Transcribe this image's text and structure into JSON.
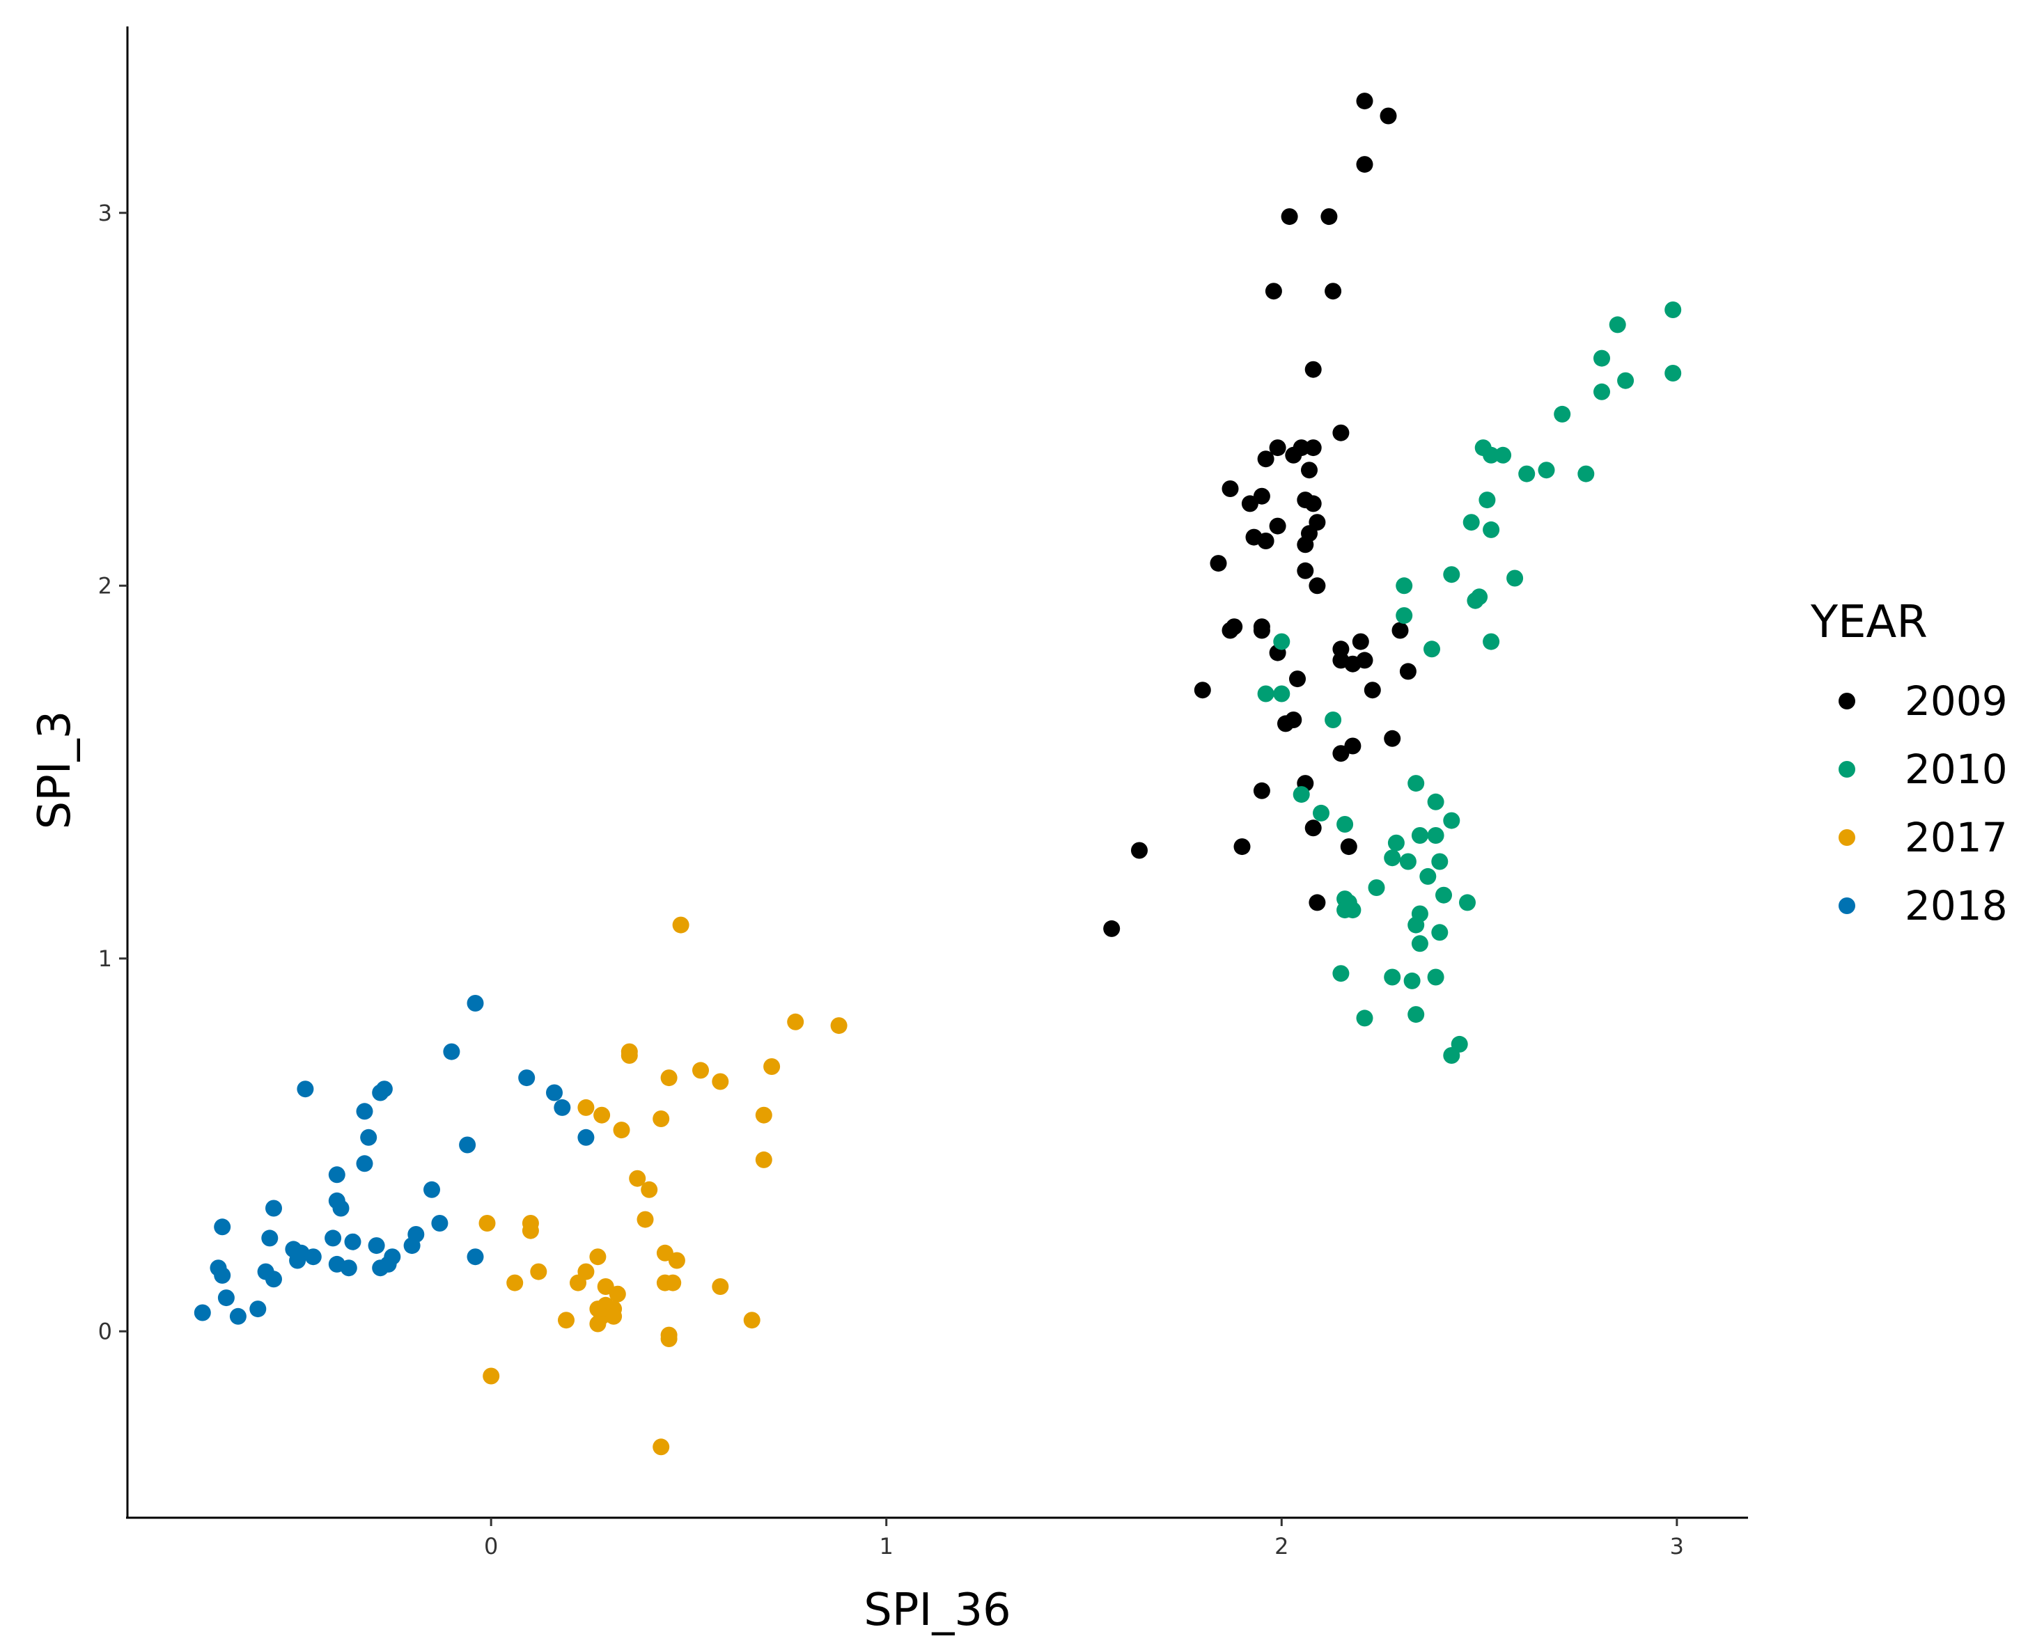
{
  "chart_data": {
    "type": "scatter",
    "xlabel": "SPI_36",
    "ylabel": "SPI_3",
    "xlim": [
      -0.92,
      3.18
    ],
    "ylim": [
      -0.5,
      3.5
    ],
    "x_ticks": [
      0,
      1,
      2,
      3
    ],
    "x_tick_labels": [
      "0",
      "1",
      "2",
      "3"
    ],
    "y_ticks": [
      0,
      1,
      2,
      3
    ],
    "y_tick_labels": [
      "0",
      "1",
      "2",
      "3"
    ],
    "grid": false,
    "legend": {
      "title": "YEAR",
      "position": "right"
    },
    "series": [
      {
        "name": "2009",
        "color": "#000000",
        "points": [
          [
            2.21,
            3.3
          ],
          [
            2.27,
            3.26
          ],
          [
            2.21,
            3.13
          ],
          [
            2.02,
            2.99
          ],
          [
            2.12,
            2.99
          ],
          [
            1.98,
            2.79
          ],
          [
            2.13,
            2.79
          ],
          [
            2.08,
            2.58
          ],
          [
            2.15,
            2.41
          ],
          [
            1.99,
            2.37
          ],
          [
            1.96,
            2.34
          ],
          [
            2.05,
            2.37
          ],
          [
            2.08,
            2.37
          ],
          [
            2.03,
            2.35
          ],
          [
            2.07,
            2.31
          ],
          [
            1.87,
            2.26
          ],
          [
            1.95,
            2.24
          ],
          [
            1.92,
            2.22
          ],
          [
            2.06,
            2.23
          ],
          [
            2.08,
            2.22
          ],
          [
            1.99,
            2.16
          ],
          [
            2.09,
            2.17
          ],
          [
            1.93,
            2.13
          ],
          [
            1.96,
            2.12
          ],
          [
            2.07,
            2.14
          ],
          [
            2.06,
            2.11
          ],
          [
            1.84,
            2.06
          ],
          [
            2.06,
            2.04
          ],
          [
            2.09,
            2.0
          ],
          [
            1.87,
            1.88
          ],
          [
            1.88,
            1.89
          ],
          [
            1.95,
            1.89
          ],
          [
            1.95,
            1.88
          ],
          [
            2.2,
            1.85
          ],
          [
            2.3,
            1.88
          ],
          [
            2.15,
            1.83
          ],
          [
            1.99,
            1.82
          ],
          [
            2.15,
            1.8
          ],
          [
            2.18,
            1.79
          ],
          [
            2.21,
            1.8
          ],
          [
            2.32,
            1.77
          ],
          [
            2.04,
            1.75
          ],
          [
            1.8,
            1.72
          ],
          [
            2.23,
            1.72
          ],
          [
            2.01,
            1.63
          ],
          [
            2.03,
            1.64
          ],
          [
            2.28,
            1.59
          ],
          [
            2.18,
            1.57
          ],
          [
            2.15,
            1.55
          ],
          [
            2.06,
            1.47
          ],
          [
            1.95,
            1.45
          ],
          [
            2.08,
            1.35
          ],
          [
            1.64,
            1.29
          ],
          [
            1.9,
            1.3
          ],
          [
            2.17,
            1.3
          ],
          [
            2.09,
            1.15
          ],
          [
            1.57,
            1.08
          ]
        ]
      },
      {
        "name": "2010",
        "color": "#009E73",
        "points": [
          [
            2.99,
            2.74
          ],
          [
            2.85,
            2.7
          ],
          [
            2.81,
            2.61
          ],
          [
            2.99,
            2.57
          ],
          [
            2.87,
            2.55
          ],
          [
            2.81,
            2.52
          ],
          [
            2.71,
            2.46
          ],
          [
            2.51,
            2.37
          ],
          [
            2.53,
            2.35
          ],
          [
            2.56,
            2.35
          ],
          [
            2.67,
            2.31
          ],
          [
            2.62,
            2.3
          ],
          [
            2.77,
            2.3
          ],
          [
            2.52,
            2.23
          ],
          [
            2.48,
            2.17
          ],
          [
            2.53,
            2.15
          ],
          [
            2.43,
            2.03
          ],
          [
            2.59,
            2.02
          ],
          [
            2.31,
            2.0
          ],
          [
            2.49,
            1.96
          ],
          [
            2.5,
            1.97
          ],
          [
            2.31,
            1.92
          ],
          [
            2.0,
            1.85
          ],
          [
            2.53,
            1.85
          ],
          [
            2.38,
            1.83
          ],
          [
            1.96,
            1.71
          ],
          [
            2.0,
            1.71
          ],
          [
            2.13,
            1.64
          ],
          [
            2.05,
            1.44
          ],
          [
            2.34,
            1.47
          ],
          [
            2.39,
            1.42
          ],
          [
            2.1,
            1.39
          ],
          [
            2.43,
            1.37
          ],
          [
            2.16,
            1.36
          ],
          [
            2.35,
            1.33
          ],
          [
            2.39,
            1.33
          ],
          [
            2.29,
            1.31
          ],
          [
            2.28,
            1.27
          ],
          [
            2.32,
            1.26
          ],
          [
            2.4,
            1.26
          ],
          [
            2.37,
            1.22
          ],
          [
            2.24,
            1.19
          ],
          [
            2.41,
            1.17
          ],
          [
            2.16,
            1.16
          ],
          [
            2.17,
            1.15
          ],
          [
            2.16,
            1.13
          ],
          [
            2.18,
            1.13
          ],
          [
            2.35,
            1.12
          ],
          [
            2.47,
            1.15
          ],
          [
            2.34,
            1.09
          ],
          [
            2.4,
            1.07
          ],
          [
            2.35,
            1.04
          ],
          [
            2.15,
            0.96
          ],
          [
            2.28,
            0.95
          ],
          [
            2.33,
            0.94
          ],
          [
            2.39,
            0.95
          ],
          [
            2.21,
            0.84
          ],
          [
            2.34,
            0.85
          ],
          [
            2.45,
            0.77
          ],
          [
            2.43,
            0.74
          ]
        ]
      },
      {
        "name": "2017",
        "color": "#E69F00",
        "points": [
          [
            0.48,
            1.09
          ],
          [
            0.77,
            0.83
          ],
          [
            0.88,
            0.82
          ],
          [
            0.35,
            0.75
          ],
          [
            0.35,
            0.74
          ],
          [
            0.53,
            0.7
          ],
          [
            0.71,
            0.71
          ],
          [
            0.45,
            0.68
          ],
          [
            0.58,
            0.67
          ],
          [
            0.24,
            0.6
          ],
          [
            0.28,
            0.58
          ],
          [
            0.69,
            0.58
          ],
          [
            0.43,
            0.57
          ],
          [
            0.33,
            0.54
          ],
          [
            0.69,
            0.46
          ],
          [
            0.37,
            0.41
          ],
          [
            0.4,
            0.38
          ],
          [
            0.39,
            0.3
          ],
          [
            -0.01,
            0.29
          ],
          [
            0.1,
            0.29
          ],
          [
            0.1,
            0.27
          ],
          [
            0.44,
            0.21
          ],
          [
            0.27,
            0.2
          ],
          [
            0.47,
            0.19
          ],
          [
            0.12,
            0.16
          ],
          [
            0.24,
            0.16
          ],
          [
            0.22,
            0.13
          ],
          [
            0.29,
            0.12
          ],
          [
            0.06,
            0.13
          ],
          [
            0.58,
            0.12
          ],
          [
            0.44,
            0.13
          ],
          [
            0.46,
            0.13
          ],
          [
            0.32,
            0.1
          ],
          [
            0.29,
            0.07
          ],
          [
            0.27,
            0.06
          ],
          [
            0.31,
            0.06
          ],
          [
            0.28,
            0.04
          ],
          [
            0.31,
            0.04
          ],
          [
            0.19,
            0.03
          ],
          [
            0.27,
            0.02
          ],
          [
            0.66,
            0.03
          ],
          [
            0.45,
            -0.01
          ],
          [
            0.45,
            -0.02
          ],
          [
            0.0,
            -0.12
          ],
          [
            0.43,
            -0.31
          ]
        ]
      },
      {
        "name": "2018",
        "color": "#0072B2",
        "points": [
          [
            -0.04,
            0.88
          ],
          [
            -0.1,
            0.75
          ],
          [
            0.09,
            0.68
          ],
          [
            -0.47,
            0.65
          ],
          [
            -0.27,
            0.65
          ],
          [
            -0.28,
            0.64
          ],
          [
            0.16,
            0.64
          ],
          [
            0.18,
            0.6
          ],
          [
            -0.32,
            0.59
          ],
          [
            -0.31,
            0.52
          ],
          [
            0.24,
            0.52
          ],
          [
            -0.06,
            0.5
          ],
          [
            -0.32,
            0.45
          ],
          [
            -0.39,
            0.42
          ],
          [
            -0.15,
            0.38
          ],
          [
            -0.39,
            0.35
          ],
          [
            -0.38,
            0.33
          ],
          [
            -0.55,
            0.33
          ],
          [
            -0.13,
            0.29
          ],
          [
            -0.68,
            0.28
          ],
          [
            -0.56,
            0.25
          ],
          [
            -0.4,
            0.25
          ],
          [
            -0.35,
            0.24
          ],
          [
            -0.29,
            0.23
          ],
          [
            -0.19,
            0.26
          ],
          [
            -0.2,
            0.23
          ],
          [
            -0.5,
            0.22
          ],
          [
            -0.48,
            0.21
          ],
          [
            -0.45,
            0.2
          ],
          [
            -0.49,
            0.19
          ],
          [
            -0.39,
            0.18
          ],
          [
            -0.36,
            0.17
          ],
          [
            -0.25,
            0.2
          ],
          [
            -0.26,
            0.18
          ],
          [
            -0.28,
            0.17
          ],
          [
            -0.04,
            0.2
          ],
          [
            -0.69,
            0.17
          ],
          [
            -0.68,
            0.15
          ],
          [
            -0.57,
            0.16
          ],
          [
            -0.55,
            0.14
          ],
          [
            -0.67,
            0.09
          ],
          [
            -0.59,
            0.06
          ],
          [
            -0.73,
            0.05
          ],
          [
            -0.64,
            0.04
          ]
        ]
      }
    ]
  }
}
